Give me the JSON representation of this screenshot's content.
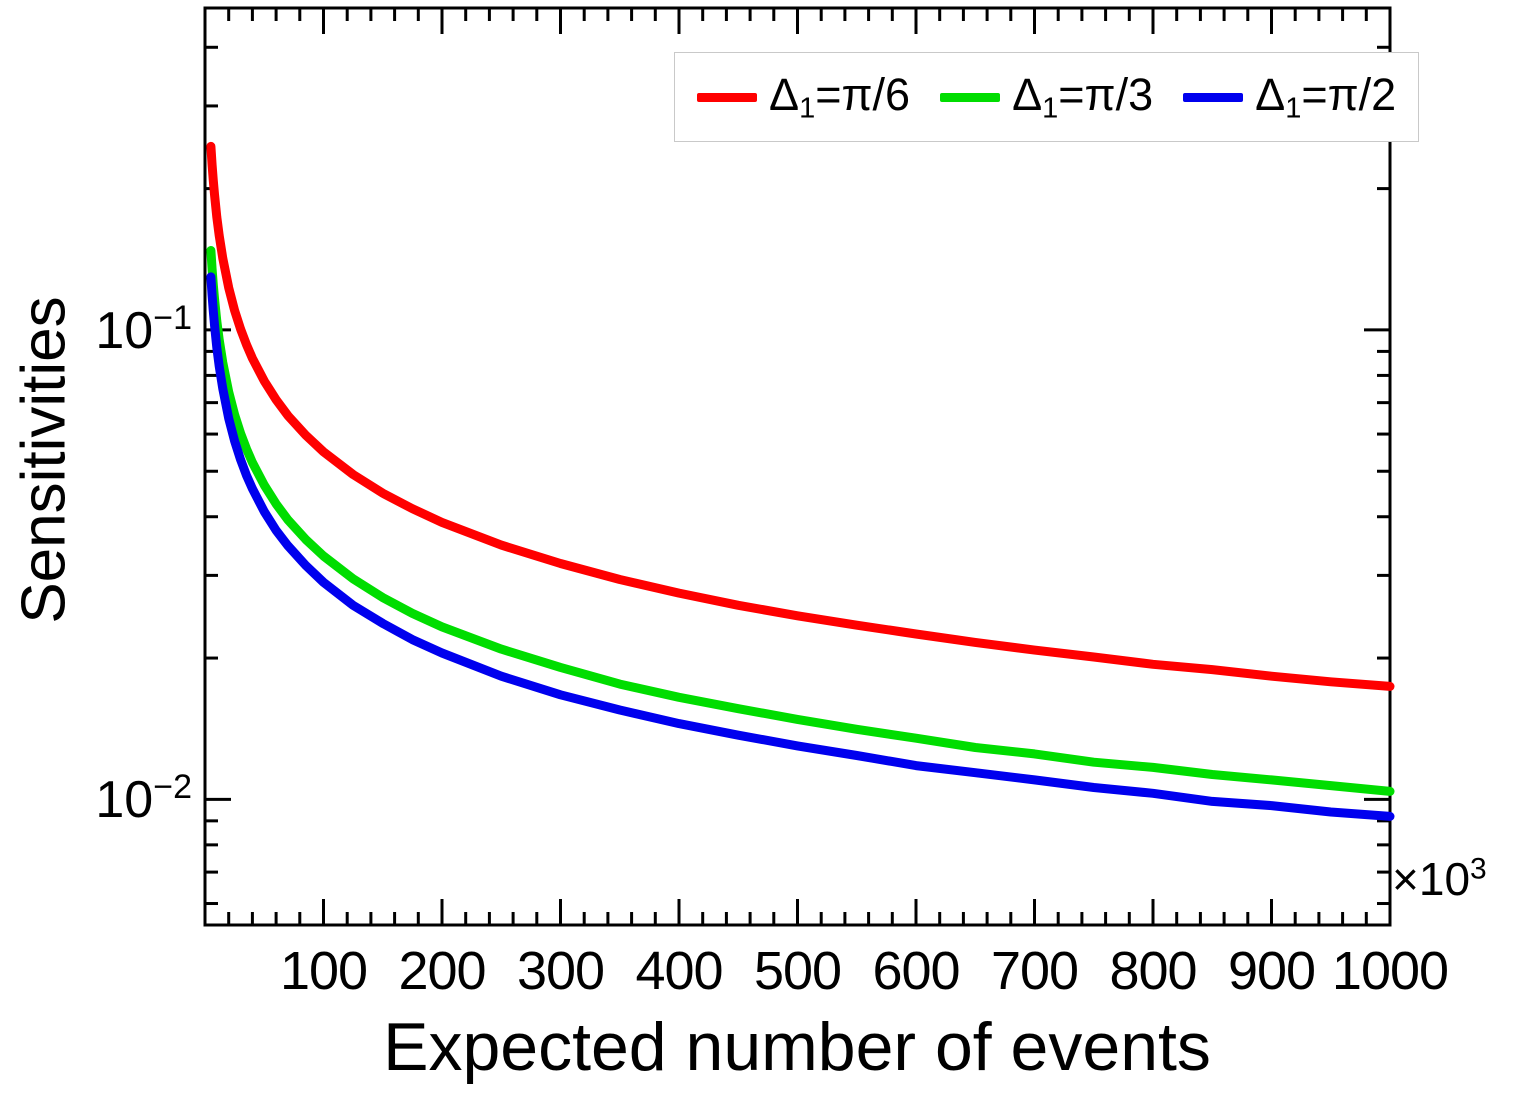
{
  "chart_data": {
    "type": "line",
    "title": "",
    "xlabel": "Expected number of events",
    "ylabel": "Sensitivities",
    "x_axis_multiplier": {
      "prefix": "×10",
      "exponent": "3"
    },
    "x_scale": "linear",
    "y_scale": "log",
    "xlim": [
      0,
      1000
    ],
    "ylim": [
      0.0054,
      0.485
    ],
    "grid": false,
    "legend_position": "top-inside",
    "frame_color": "#000000",
    "x_major_step": 100,
    "x_minor_step": 20,
    "x_tick_labels": [
      "100",
      "200",
      "300",
      "400",
      "500",
      "600",
      "700",
      "800",
      "900",
      "1000"
    ],
    "y_tick_labels": [
      {
        "base": "10",
        "exponent": "−1",
        "value": 0.1
      },
      {
        "base": "10",
        "exponent": "−2",
        "value": 0.01
      }
    ],
    "x": [
      5,
      6,
      7,
      8,
      10,
      12,
      15,
      20,
      25,
      30,
      35,
      40,
      50,
      60,
      70,
      85,
      100,
      125,
      150,
      175,
      200,
      250,
      300,
      350,
      400,
      450,
      500,
      550,
      600,
      650,
      700,
      750,
      800,
      850,
      900,
      950,
      1000
    ],
    "series": [
      {
        "id": "delta1-pi-over-6",
        "label": "Δ1=π/6",
        "color": "#ff0000",
        "values": [
          0.246,
          0.2245,
          0.2079,
          0.1945,
          0.1739,
          0.1588,
          0.142,
          0.123,
          0.11,
          0.1004,
          0.093,
          0.087,
          0.0778,
          0.071,
          0.0657,
          0.0597,
          0.055,
          0.0492,
          0.0449,
          0.0416,
          0.0389,
          0.0348,
          0.0318,
          0.0294,
          0.0275,
          0.0259,
          0.0246,
          0.0235,
          0.0225,
          0.0216,
          0.0208,
          0.0201,
          0.0194,
          0.0189,
          0.0183,
          0.0178,
          0.0174
        ]
      },
      {
        "id": "delta1-pi-over-3",
        "label": "Δ1=π/3",
        "color": "#00dd00",
        "values": [
          0.1476,
          0.1347,
          0.1247,
          0.1167,
          0.1044,
          0.0953,
          0.0852,
          0.0738,
          0.066,
          0.0602,
          0.0558,
          0.0522,
          0.0467,
          0.0426,
          0.0394,
          0.0358,
          0.033,
          0.0295,
          0.0269,
          0.0249,
          0.0233,
          0.0209,
          0.0191,
          0.0176,
          0.0165,
          0.0156,
          0.0148,
          0.0141,
          0.0135,
          0.0129,
          0.0125,
          0.012,
          0.0117,
          0.0113,
          0.011,
          0.0107,
          0.0104
        ]
      },
      {
        "id": "delta1-pi-over-2",
        "label": "Δ1=π/2",
        "color": "#0000ee",
        "values": [
          0.1297,
          0.1184,
          0.1096,
          0.1025,
          0.0917,
          0.0837,
          0.0749,
          0.0648,
          0.058,
          0.0529,
          0.049,
          0.0459,
          0.041,
          0.0374,
          0.0347,
          0.0315,
          0.029,
          0.0259,
          0.0237,
          0.0219,
          0.0205,
          0.0183,
          0.0167,
          0.0155,
          0.0145,
          0.0137,
          0.013,
          0.0124,
          0.0118,
          0.0114,
          0.011,
          0.0106,
          0.0103,
          0.0099,
          0.0097,
          0.0094,
          0.0092
        ]
      }
    ],
    "legend": {
      "entries": [
        {
          "symbol": "Δ",
          "subscript": "1",
          "rest": "=π/6",
          "color": "#ff0000"
        },
        {
          "symbol": "Δ",
          "subscript": "1",
          "rest": "=π/3",
          "color": "#00dd00"
        },
        {
          "symbol": "Δ",
          "subscript": "1",
          "rest": "=π/2",
          "color": "#0000ee"
        }
      ]
    }
  }
}
